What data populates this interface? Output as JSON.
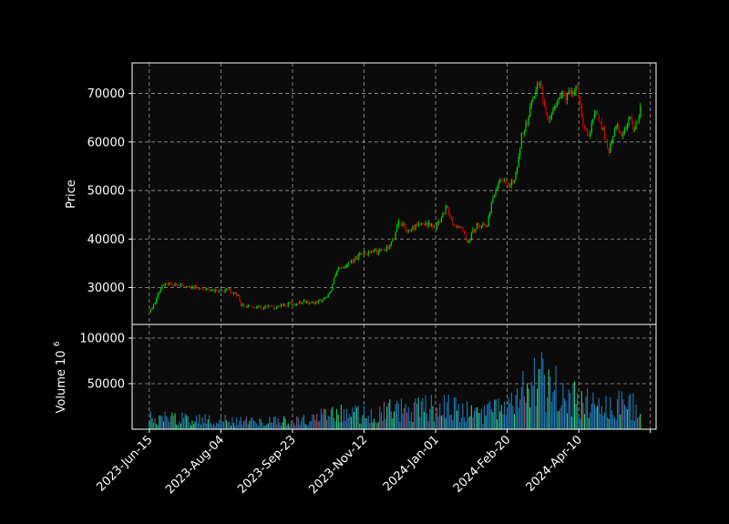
{
  "colors": {
    "background": "#000000",
    "plot_bg": "#0b0b0b",
    "up": "#00dd00",
    "down": "#dd0000",
    "volume_bar": "#1f77b4",
    "volume_up": "#2ecc71",
    "volume_down": "#8e4a6a",
    "text": "#ffffff"
  },
  "chart_data": {
    "type": "candlestick",
    "grid": true,
    "price_panel": {
      "ylabel": "Price",
      "ylim": [
        22400,
        76300
      ],
      "yticks": [
        30000,
        40000,
        50000,
        60000,
        70000
      ],
      "ytick_labels": [
        "30000",
        "40000",
        "50000",
        "60000",
        "70000"
      ]
    },
    "volume_panel": {
      "ylabel": "Volume",
      "ylabel_exponent_base": "10",
      "ylabel_exponent": "6",
      "ylim": [
        0,
        115000
      ],
      "yticks": [
        50000,
        100000
      ],
      "ytick_labels": [
        "50000",
        "100000"
      ]
    },
    "x": {
      "start_date": "2023-06-15",
      "end_date": "2024-05-23",
      "xlim": [
        "2023-06-03",
        "2024-06-03"
      ],
      "ticks": [
        "2023-06-15",
        "2023-08-04",
        "2023-09-23",
        "2023-11-12",
        "2024-01-01",
        "2024-02-20",
        "2024-04-10",
        "2024-05-30"
      ],
      "tick_labels": [
        "2023-Jun-15",
        "2023-Aug-04",
        "2023-Sep-23",
        "2023-Nov-12",
        "2024-Jan-01",
        "2024-Feb-20",
        "2024-Apr-10",
        ""
      ]
    },
    "close_trend": [
      [
        "2023-06-15",
        25100
      ],
      [
        "2023-06-18",
        26500
      ],
      [
        "2023-06-21",
        28800
      ],
      [
        "2023-06-24",
        30500
      ],
      [
        "2023-07-01",
        30600
      ],
      [
        "2023-07-10",
        30400
      ],
      [
        "2023-07-20",
        29900
      ],
      [
        "2023-07-30",
        29300
      ],
      [
        "2023-08-10",
        29400
      ],
      [
        "2023-08-16",
        28500
      ],
      [
        "2023-08-18",
        26300
      ],
      [
        "2023-08-30",
        26000
      ],
      [
        "2023-09-10",
        25900
      ],
      [
        "2023-09-20",
        26600
      ],
      [
        "2023-10-01",
        27000
      ],
      [
        "2023-10-10",
        27100
      ],
      [
        "2023-10-16",
        27600
      ],
      [
        "2023-10-20",
        29500
      ],
      [
        "2023-10-24",
        33800
      ],
      [
        "2023-11-01",
        34800
      ],
      [
        "2023-11-10",
        37000
      ],
      [
        "2023-11-20",
        37300
      ],
      [
        "2023-11-27",
        37800
      ],
      [
        "2023-12-03",
        40000
      ],
      [
        "2023-12-06",
        43800
      ],
      [
        "2023-12-12",
        41500
      ],
      [
        "2023-12-18",
        42500
      ],
      [
        "2023-12-25",
        43200
      ],
      [
        "2024-01-01",
        42500
      ],
      [
        "2024-01-09",
        46500
      ],
      [
        "2024-01-13",
        42800
      ],
      [
        "2024-01-20",
        41600
      ],
      [
        "2024-01-23",
        39500
      ],
      [
        "2024-01-30",
        43000
      ],
      [
        "2024-02-06",
        43000
      ],
      [
        "2024-02-09",
        47500
      ],
      [
        "2024-02-12",
        50000
      ],
      [
        "2024-02-16",
        52000
      ],
      [
        "2024-02-25",
        51500
      ],
      [
        "2024-02-28",
        57000
      ],
      [
        "2024-03-01",
        61500
      ],
      [
        "2024-03-05",
        64000
      ],
      [
        "2024-03-08",
        68500
      ],
      [
        "2024-03-14",
        72500
      ],
      [
        "2024-03-19",
        64500
      ],
      [
        "2024-03-23",
        66000
      ],
      [
        "2024-03-27",
        69800
      ],
      [
        "2024-04-01",
        69500
      ],
      [
        "2024-04-06",
        70500
      ],
      [
        "2024-04-09",
        71500
      ],
      [
        "2024-04-13",
        64000
      ],
      [
        "2024-04-17",
        61500
      ],
      [
        "2024-04-22",
        66500
      ],
      [
        "2024-04-25",
        64200
      ],
      [
        "2024-05-01",
        58000
      ],
      [
        "2024-05-06",
        63500
      ],
      [
        "2024-05-10",
        61000
      ],
      [
        "2024-05-15",
        65000
      ],
      [
        "2024-05-19",
        62500
      ],
      [
        "2024-05-23",
        66500
      ]
    ],
    "volume_trend": [
      [
        "2023-06-15",
        12000
      ],
      [
        "2023-07-01",
        12000
      ],
      [
        "2023-08-01",
        10000
      ],
      [
        "2023-09-01",
        9000
      ],
      [
        "2023-10-01",
        10000
      ],
      [
        "2023-10-25",
        18000
      ],
      [
        "2023-11-15",
        17000
      ],
      [
        "2023-12-10",
        22000
      ],
      [
        "2024-01-10",
        24000
      ],
      [
        "2024-02-01",
        16000
      ],
      [
        "2024-02-15",
        22000
      ],
      [
        "2024-03-05",
        42000
      ],
      [
        "2024-03-15",
        55000
      ],
      [
        "2024-04-01",
        35000
      ],
      [
        "2024-04-15",
        30000
      ],
      [
        "2024-05-01",
        28000
      ],
      [
        "2024-05-23",
        25000
      ]
    ]
  }
}
